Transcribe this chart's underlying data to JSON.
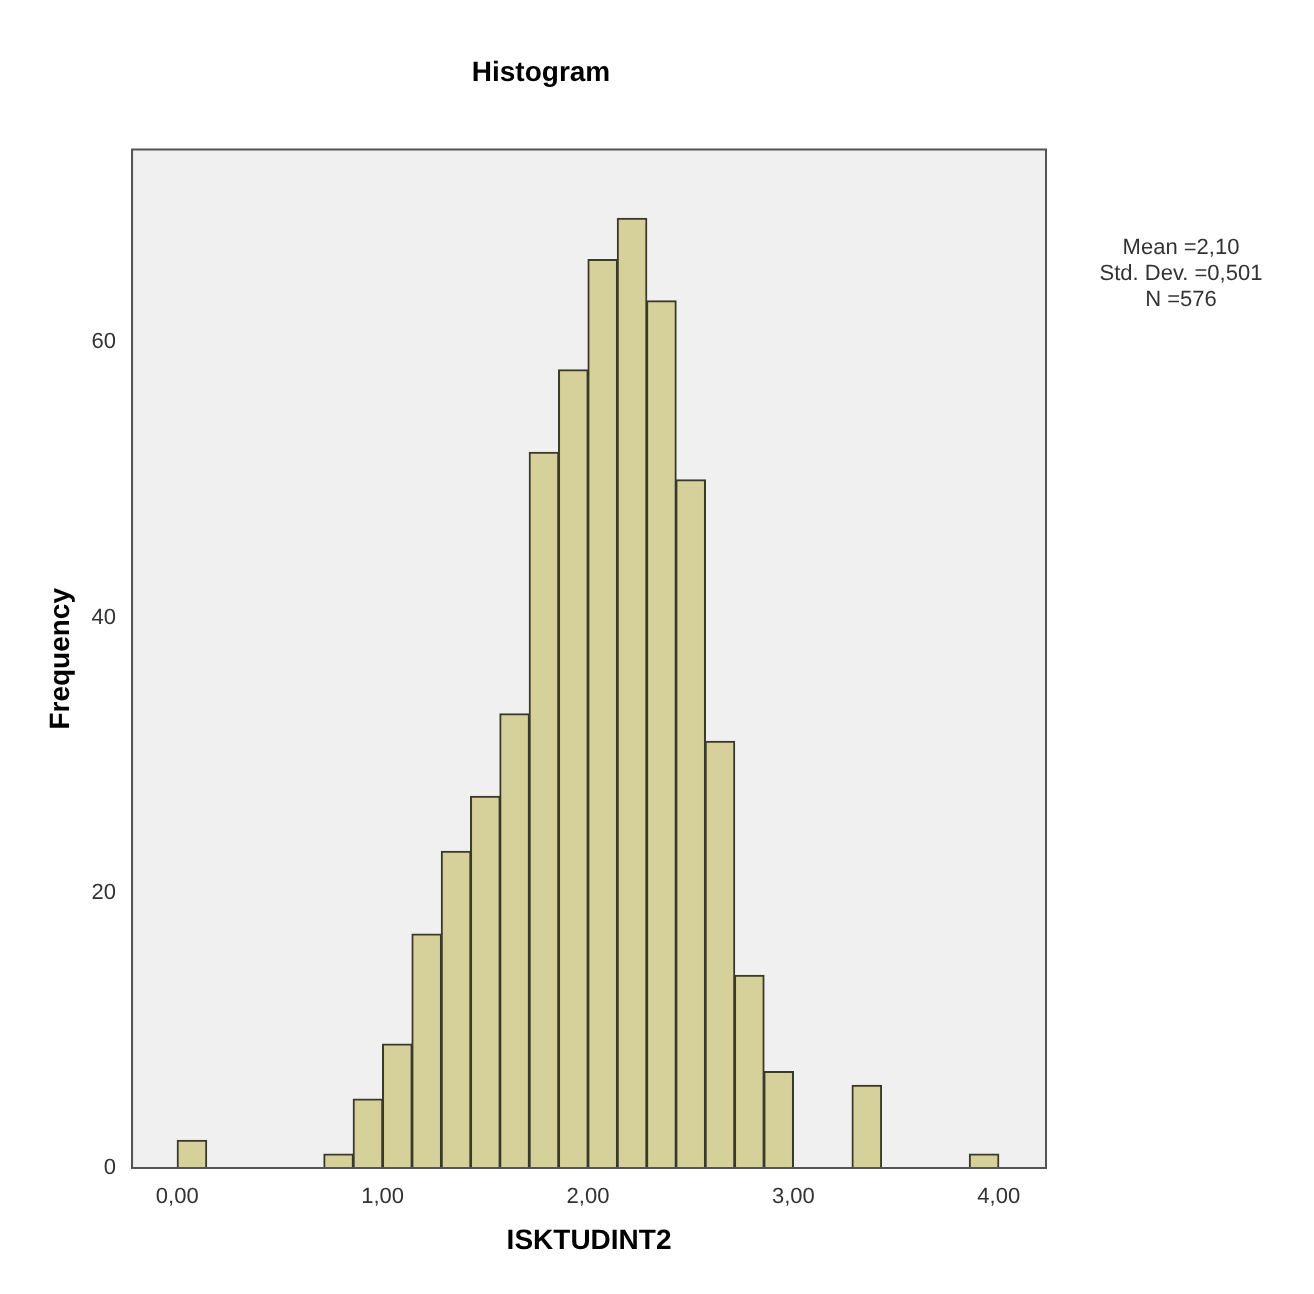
{
  "chart_data": {
    "type": "histogram",
    "title": "Histogram",
    "xlabel": "ISKTUDINT2",
    "ylabel": "Frequency",
    "bins": [
      0,
      0.143,
      0.286,
      0.429,
      0.571,
      0.714,
      0.857,
      1.0,
      1.143,
      1.286,
      1.429,
      1.571,
      1.714,
      1.857,
      2.0,
      2.143,
      2.286,
      2.429,
      2.571,
      2.714,
      2.857,
      3.0,
      3.143,
      3.286,
      3.429,
      3.571,
      3.714,
      3.857,
      4.0
    ],
    "values": [
      2,
      0,
      0,
      0,
      0,
      1,
      5,
      9,
      17,
      23,
      27,
      33,
      52,
      58,
      66,
      69,
      63,
      50,
      31,
      14,
      7,
      0,
      0,
      6,
      0,
      0,
      0,
      1
    ],
    "color": "#d6d09a",
    "xlim": [
      -0.22,
      4.23
    ],
    "xticks": [
      {
        "value": 0,
        "label": "0,00"
      },
      {
        "value": 1,
        "label": "1,00"
      },
      {
        "value": 2,
        "label": "2,00"
      },
      {
        "value": 3,
        "label": "3,00"
      },
      {
        "value": 4,
        "label": "4,00"
      }
    ],
    "ylim": [
      0,
      74
    ],
    "yticks": [
      0,
      20,
      40,
      60
    ],
    "grid": false,
    "legend": false,
    "annotations": [
      "Mean =2,10",
      "Std. Dev. =0,501",
      "N =576"
    ]
  }
}
